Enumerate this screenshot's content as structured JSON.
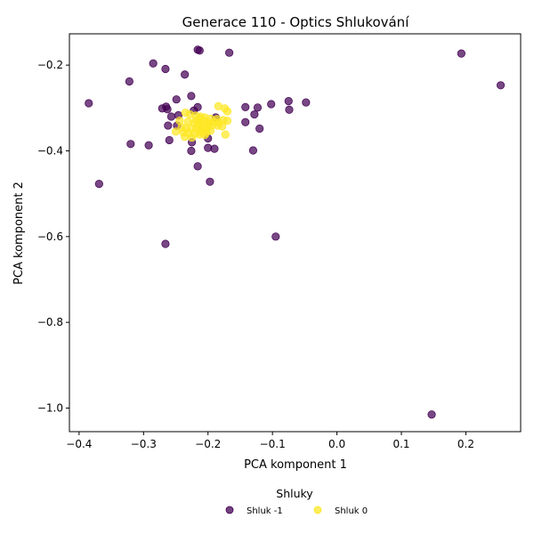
{
  "chart_data": {
    "type": "scatter",
    "title": "Generace 110 - Optics Shlukování",
    "xlabel": "PCA komponent 1",
    "ylabel": "PCA komponent 2",
    "xlim": [
      -0.415,
      0.285
    ],
    "ylim": [
      -1.055,
      -0.127
    ],
    "x_ticks": [
      -0.4,
      -0.3,
      -0.2,
      -0.1,
      0.0,
      0.1,
      0.2
    ],
    "x_tick_labels": [
      "−0.4",
      "−0.3",
      "−0.2",
      "−0.1",
      "0.0",
      "0.1",
      "0.2"
    ],
    "y_ticks": [
      -0.2,
      -0.4,
      -0.6,
      -0.8,
      -1.0
    ],
    "y_tick_labels": [
      "−0.2",
      "−0.4",
      "−0.6",
      "−0.8",
      "−1.0"
    ],
    "grid": false,
    "legend": {
      "title": "Shluky",
      "placement": "bottom-center-outside",
      "entries": [
        "Shluk -1",
        "Shluk 0"
      ]
    },
    "series": [
      {
        "name": "Shluk -1",
        "color": "#440154",
        "points": [
          [
            -0.213,
            -0.166
          ],
          [
            -0.216,
            -0.164
          ],
          [
            -0.167,
            -0.171
          ],
          [
            0.193,
            -0.173
          ],
          [
            -0.285,
            -0.196
          ],
          [
            -0.266,
            -0.209
          ],
          [
            -0.236,
            -0.222
          ],
          [
            -0.322,
            -0.238
          ],
          [
            0.254,
            -0.247
          ],
          [
            -0.385,
            -0.289
          ],
          [
            -0.226,
            -0.272
          ],
          [
            -0.249,
            -0.28
          ],
          [
            -0.265,
            -0.297
          ],
          [
            -0.271,
            -0.301
          ],
          [
            -0.263,
            -0.303
          ],
          [
            -0.075,
            -0.284
          ],
          [
            -0.048,
            -0.287
          ],
          [
            -0.102,
            -0.291
          ],
          [
            -0.142,
            -0.298
          ],
          [
            -0.123,
            -0.299
          ],
          [
            -0.074,
            -0.304
          ],
          [
            -0.216,
            -0.298
          ],
          [
            -0.222,
            -0.306
          ],
          [
            -0.128,
            -0.315
          ],
          [
            -0.246,
            -0.317
          ],
          [
            -0.257,
            -0.32
          ],
          [
            -0.188,
            -0.322
          ],
          [
            -0.142,
            -0.333
          ],
          [
            -0.12,
            -0.348
          ],
          [
            -0.262,
            -0.341
          ],
          [
            -0.248,
            -0.341
          ],
          [
            -0.32,
            -0.384
          ],
          [
            -0.292,
            -0.387
          ],
          [
            -0.26,
            -0.375
          ],
          [
            -0.2,
            -0.371
          ],
          [
            -0.225,
            -0.38
          ],
          [
            -0.2,
            -0.393
          ],
          [
            -0.19,
            -0.395
          ],
          [
            -0.226,
            -0.4
          ],
          [
            -0.13,
            -0.399
          ],
          [
            -0.216,
            -0.436
          ],
          [
            -0.197,
            -0.472
          ],
          [
            -0.369,
            -0.477
          ],
          [
            -0.095,
            -0.6
          ],
          [
            -0.266,
            -0.617
          ],
          [
            0.147,
            -1.015
          ]
        ]
      },
      {
        "name": "Shluk 0",
        "color": "#fde725",
        "points": [
          [
            -0.184,
            -0.296
          ],
          [
            -0.174,
            -0.301
          ],
          [
            -0.17,
            -0.308
          ],
          [
            -0.235,
            -0.311
          ],
          [
            -0.228,
            -0.315
          ],
          [
            -0.219,
            -0.318
          ],
          [
            -0.212,
            -0.32
          ],
          [
            -0.205,
            -0.322
          ],
          [
            -0.196,
            -0.325
          ],
          [
            -0.186,
            -0.326
          ],
          [
            -0.176,
            -0.328
          ],
          [
            -0.17,
            -0.33
          ],
          [
            -0.244,
            -0.33
          ],
          [
            -0.231,
            -0.332
          ],
          [
            -0.222,
            -0.334
          ],
          [
            -0.214,
            -0.336
          ],
          [
            -0.207,
            -0.337
          ],
          [
            -0.2,
            -0.339
          ],
          [
            -0.193,
            -0.34
          ],
          [
            -0.185,
            -0.341
          ],
          [
            -0.178,
            -0.343
          ],
          [
            -0.241,
            -0.345
          ],
          [
            -0.234,
            -0.347
          ],
          [
            -0.226,
            -0.348
          ],
          [
            -0.218,
            -0.349
          ],
          [
            -0.21,
            -0.351
          ],
          [
            -0.203,
            -0.352
          ],
          [
            -0.196,
            -0.353
          ],
          [
            -0.25,
            -0.355
          ],
          [
            -0.238,
            -0.357
          ],
          [
            -0.23,
            -0.359
          ],
          [
            -0.221,
            -0.36
          ],
          [
            -0.213,
            -0.362
          ],
          [
            -0.205,
            -0.363
          ],
          [
            -0.173,
            -0.362
          ],
          [
            -0.236,
            -0.367
          ],
          [
            -0.225,
            -0.369
          ],
          [
            -0.212,
            -0.325
          ],
          [
            -0.205,
            -0.33
          ],
          [
            -0.198,
            -0.335
          ],
          [
            -0.215,
            -0.342
          ],
          [
            -0.208,
            -0.346
          ],
          [
            -0.2,
            -0.344
          ],
          [
            -0.218,
            -0.33
          ],
          [
            -0.191,
            -0.332
          ],
          [
            -0.183,
            -0.334
          ],
          [
            -0.211,
            -0.356
          ],
          [
            -0.203,
            -0.358
          ]
        ]
      }
    ]
  }
}
